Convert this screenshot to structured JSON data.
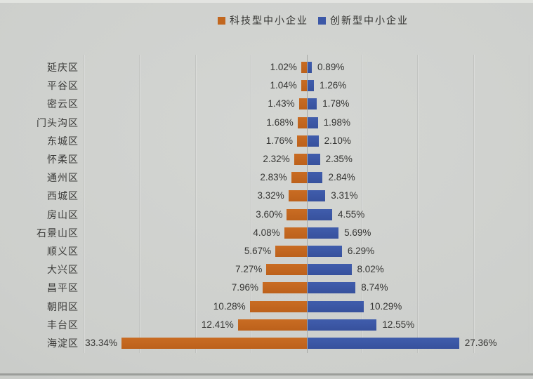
{
  "chart_data": {
    "type": "bar",
    "variant": "diverging-horizontal-tornado",
    "title": "",
    "categories": [
      "延庆区",
      "平谷区",
      "密云区",
      "门头沟区",
      "东城区",
      "怀柔区",
      "通州区",
      "西城区",
      "房山区",
      "石景山区",
      "顺义区",
      "大兴区",
      "昌平区",
      "朝阳区",
      "丰台区",
      "海淀区"
    ],
    "series": [
      {
        "name": "科技型中小企业",
        "color": "#c2671f",
        "direction": "left",
        "values": [
          1.02,
          1.04,
          1.43,
          1.68,
          1.76,
          2.32,
          2.83,
          3.32,
          3.6,
          4.08,
          5.67,
          7.27,
          7.96,
          10.28,
          12.41,
          33.34
        ]
      },
      {
        "name": "创新型中小企业",
        "color": "#3c58a7",
        "direction": "right",
        "values": [
          0.89,
          1.26,
          1.78,
          1.98,
          2.1,
          2.35,
          2.84,
          3.31,
          4.55,
          5.69,
          6.29,
          8.02,
          8.74,
          10.29,
          12.55,
          27.36
        ]
      }
    ],
    "value_format": "0.00%",
    "data_labels_visible": true,
    "axis": {
      "min": -40,
      "max": 40,
      "gridline_interval": 10,
      "gridlines_visible": true,
      "tick_labels_visible": false
    },
    "legend": {
      "position": "top-center"
    }
  },
  "colors": {
    "background": "#cdcfcc",
    "gridline": "#bfc1be",
    "axis_line": "#a6a8a5",
    "text": "#3a3a38",
    "series_tech_orange": "#c2671f",
    "series_innov_blue": "#3c58a7"
  }
}
